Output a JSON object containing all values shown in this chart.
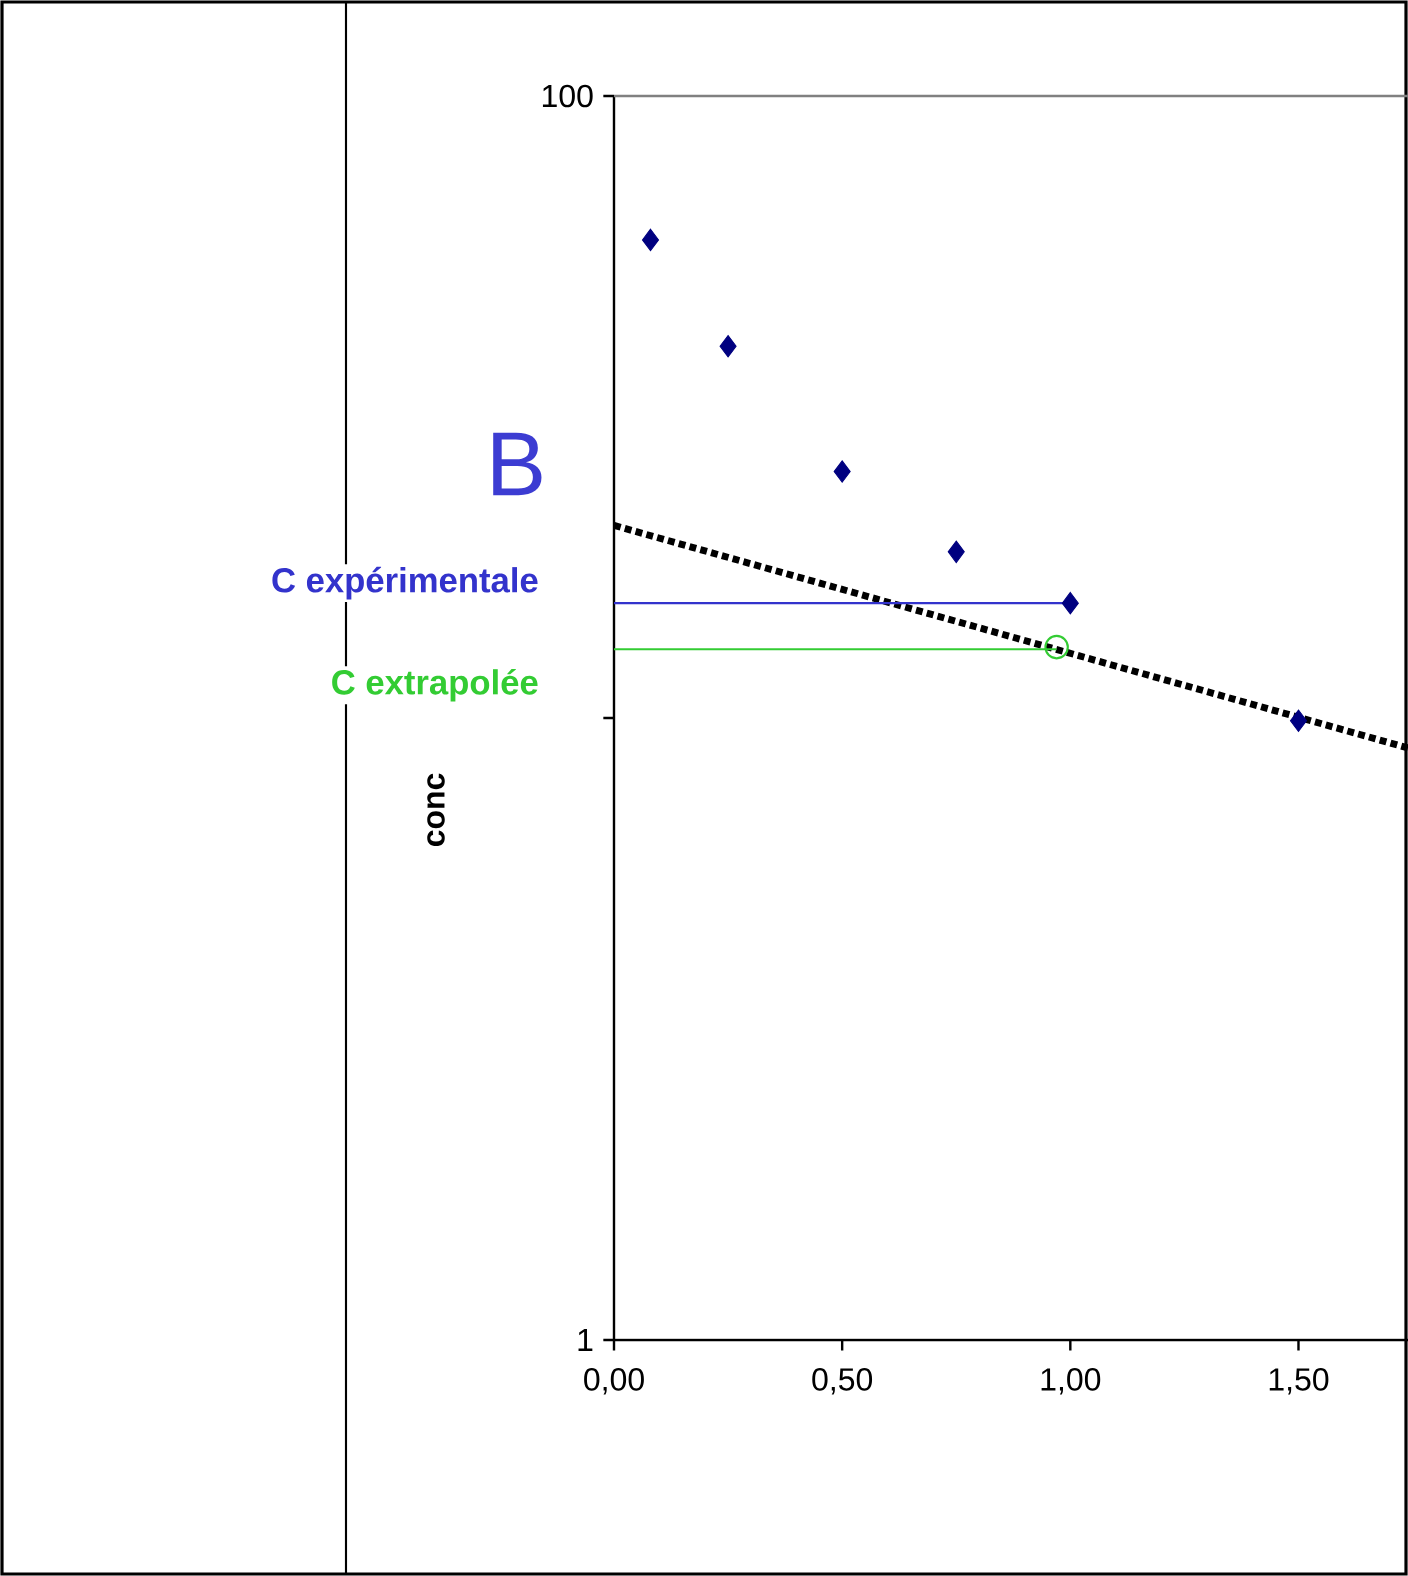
{
  "chart_data": {
    "type": "scatter",
    "ylabel": "conc",
    "annotations": [
      "B"
    ],
    "xlim": [
      0,
      1.74
    ],
    "ylim": [
      1,
      100
    ],
    "log": "y",
    "xticks": [
      {
        "value": 0,
        "label": "0,00"
      },
      {
        "value": 0.5,
        "label": "0,50"
      },
      {
        "value": 1,
        "label": "1,00"
      },
      {
        "value": 1.5,
        "label": "1,50"
      }
    ],
    "yticks": [
      1,
      {
        "value": 10,
        "label": null
      },
      100
    ],
    "marker": "diamond",
    "series": [
      {
        "color": "#000080",
        "x": [
          0.08,
          0.25,
          0.5,
          0.75,
          1.0,
          1.5
        ],
        "values": [
          58.7,
          39.6,
          24.9,
          18.5,
          15.3,
          9.9
        ]
      },
      {
        "type": "line",
        "color": "#000000",
        "x": [
          0,
          1.74
        ],
        "values": [
          20.4,
          8.95
        ],
        "line_style": "dotted",
        "marker": "none"
      },
      {
        "color": "#33cc33",
        "x": [
          0.97
        ],
        "values": [
          13.0
        ],
        "marker": "circle"
      },
      {
        "type": "line",
        "name": "C expérimentale",
        "color": "#3333cc",
        "x": [
          0,
          1.0
        ],
        "values": [
          15.3,
          15.3
        ],
        "line_style": "solid",
        "marker": "none"
      },
      {
        "type": "line",
        "name": "C extrapolée",
        "color": "#33cc33",
        "x": [
          0,
          0.97
        ],
        "values": [
          12.9,
          12.9
        ],
        "line_style": "solid",
        "marker": "none"
      }
    ]
  }
}
